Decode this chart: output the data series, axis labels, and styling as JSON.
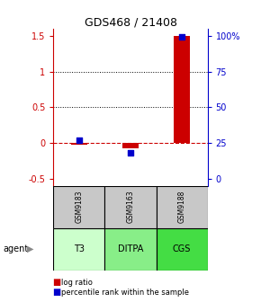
{
  "title": "GDS468 / 21408",
  "samples": [
    "GSM9183",
    "GSM9163",
    "GSM9188"
  ],
  "agents": [
    "T3",
    "DITPA",
    "CGS"
  ],
  "log_ratio": [
    -0.02,
    -0.08,
    1.5
  ],
  "percentile_rank_pct": [
    27,
    18,
    99
  ],
  "ylim": [
    -0.6,
    1.6
  ],
  "yticks_left": [
    -0.5,
    0.0,
    0.5,
    1.0,
    1.5
  ],
  "yticks_right_pct": [
    0,
    25,
    50,
    75,
    100
  ],
  "bar_color": "#cc0000",
  "dot_color": "#0000cc",
  "sample_box_color": "#c8c8c8",
  "agent_colors": [
    "#ccffcc",
    "#88ee88",
    "#44dd44"
  ],
  "left_axis_color": "#cc0000",
  "right_axis_color": "#0000cc",
  "bar_width": 0.3,
  "dot_size": 25,
  "left_label": "log ratio",
  "right_label": "percentile rank within the sample"
}
